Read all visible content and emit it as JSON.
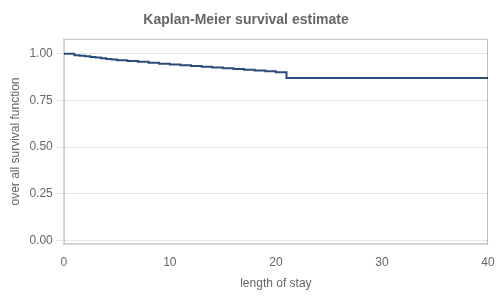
{
  "chart_data": {
    "type": "line",
    "title": "Kaplan-Meier survival estimate",
    "xlabel": "length of stay",
    "ylabel": "over all survival function",
    "x": [
      0,
      1,
      1.5,
      2,
      2.5,
      3,
      3.5,
      4,
      4.5,
      5,
      6,
      7,
      8,
      9,
      10,
      11,
      12,
      13,
      14,
      15,
      16,
      17,
      18,
      19,
      20,
      21,
      40
    ],
    "values": [
      1.0,
      0.992,
      0.989,
      0.986,
      0.983,
      0.98,
      0.976,
      0.972,
      0.969,
      0.965,
      0.961,
      0.957,
      0.952,
      0.947,
      0.942,
      0.938,
      0.934,
      0.93,
      0.926,
      0.922,
      0.918,
      0.914,
      0.91,
      0.906,
      0.901,
      0.87,
      0.87
    ],
    "color": "#2b4d7c",
    "line_style": "step",
    "xlim": [
      0,
      40
    ],
    "xticks": [
      0,
      10,
      20,
      30,
      40
    ],
    "ylim": [
      -0.02,
      1.08
    ],
    "yticks": [
      {
        "value": 0,
        "label": "0.00"
      },
      0.25,
      {
        "value": 0.5,
        "label": "0.50"
      },
      0.75,
      {
        "value": 1,
        "label": "1.00"
      }
    ],
    "grid": "y"
  }
}
